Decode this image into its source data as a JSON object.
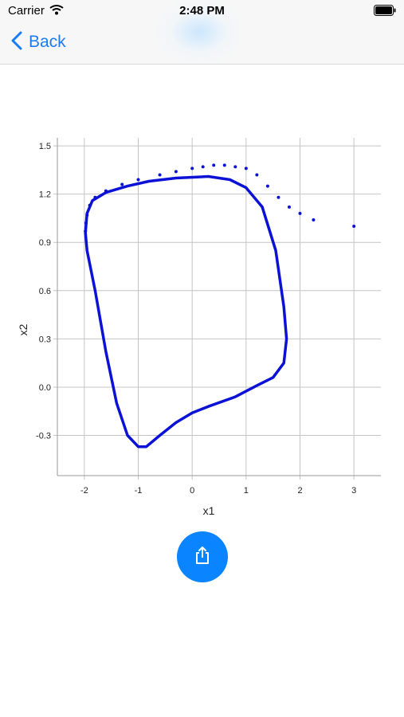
{
  "status_bar": {
    "carrier": "Carrier",
    "time": "2:48 PM",
    "wifi_icon": "wifi-icon",
    "battery_icon": "battery-icon"
  },
  "nav": {
    "back_label": "Back",
    "back_icon": "chevron-left-icon"
  },
  "share_button": {
    "icon": "share-icon",
    "color": "#0a84ff"
  },
  "chart_data": {
    "type": "scatter",
    "title": "",
    "xlabel": "x1",
    "ylabel": "x2",
    "xlim": [
      -2.5,
      3.5
    ],
    "ylim": [
      -0.55,
      1.55
    ],
    "x_ticks": [
      "-2",
      "-1",
      "0",
      "1",
      "2",
      "3"
    ],
    "y_ticks": [
      "1.5",
      "1.2",
      "0.9",
      "0.6",
      "0.3",
      "0.0",
      "-0.3"
    ],
    "grid": true,
    "color": "#0b12d6",
    "series": [
      {
        "style": "dotted",
        "points": [
          [
            3.0,
            1.0
          ],
          [
            2.25,
            1.04
          ],
          [
            2.0,
            1.08
          ],
          [
            1.8,
            1.12
          ],
          [
            1.6,
            1.18
          ],
          [
            1.4,
            1.25
          ],
          [
            1.2,
            1.32
          ],
          [
            1.0,
            1.36
          ],
          [
            0.8,
            1.37
          ],
          [
            0.6,
            1.38
          ],
          [
            0.4,
            1.38
          ],
          [
            0.2,
            1.37
          ],
          [
            0.0,
            1.36
          ],
          [
            -0.3,
            1.34
          ],
          [
            -0.6,
            1.32
          ],
          [
            -1.0,
            1.29
          ],
          [
            -1.3,
            1.26
          ],
          [
            -1.6,
            1.22
          ],
          [
            -1.8,
            1.18
          ],
          [
            -1.9,
            1.13
          ],
          [
            -1.95,
            1.07
          ],
          [
            -1.97,
            1.02
          ],
          [
            -1.98,
            0.97
          ]
        ]
      },
      {
        "style": "line",
        "points": [
          [
            -1.98,
            0.96
          ],
          [
            -1.95,
            1.08
          ],
          [
            -1.85,
            1.16
          ],
          [
            -1.6,
            1.21
          ],
          [
            -1.2,
            1.25
          ],
          [
            -0.8,
            1.28
          ],
          [
            -0.3,
            1.3
          ],
          [
            0.3,
            1.31
          ],
          [
            0.7,
            1.29
          ],
          [
            1.0,
            1.24
          ],
          [
            1.3,
            1.12
          ],
          [
            1.55,
            0.85
          ],
          [
            1.7,
            0.5
          ],
          [
            1.75,
            0.3
          ],
          [
            1.7,
            0.15
          ],
          [
            1.5,
            0.06
          ],
          [
            1.2,
            0.01
          ],
          [
            0.8,
            -0.06
          ],
          [
            0.3,
            -0.12
          ],
          [
            0.0,
            -0.16
          ],
          [
            -0.3,
            -0.22
          ],
          [
            -0.6,
            -0.3
          ],
          [
            -0.85,
            -0.37
          ],
          [
            -1.0,
            -0.37
          ],
          [
            -1.2,
            -0.3
          ],
          [
            -1.4,
            -0.1
          ],
          [
            -1.6,
            0.22
          ],
          [
            -1.8,
            0.6
          ],
          [
            -1.95,
            0.85
          ],
          [
            -1.98,
            0.96
          ]
        ]
      }
    ]
  }
}
